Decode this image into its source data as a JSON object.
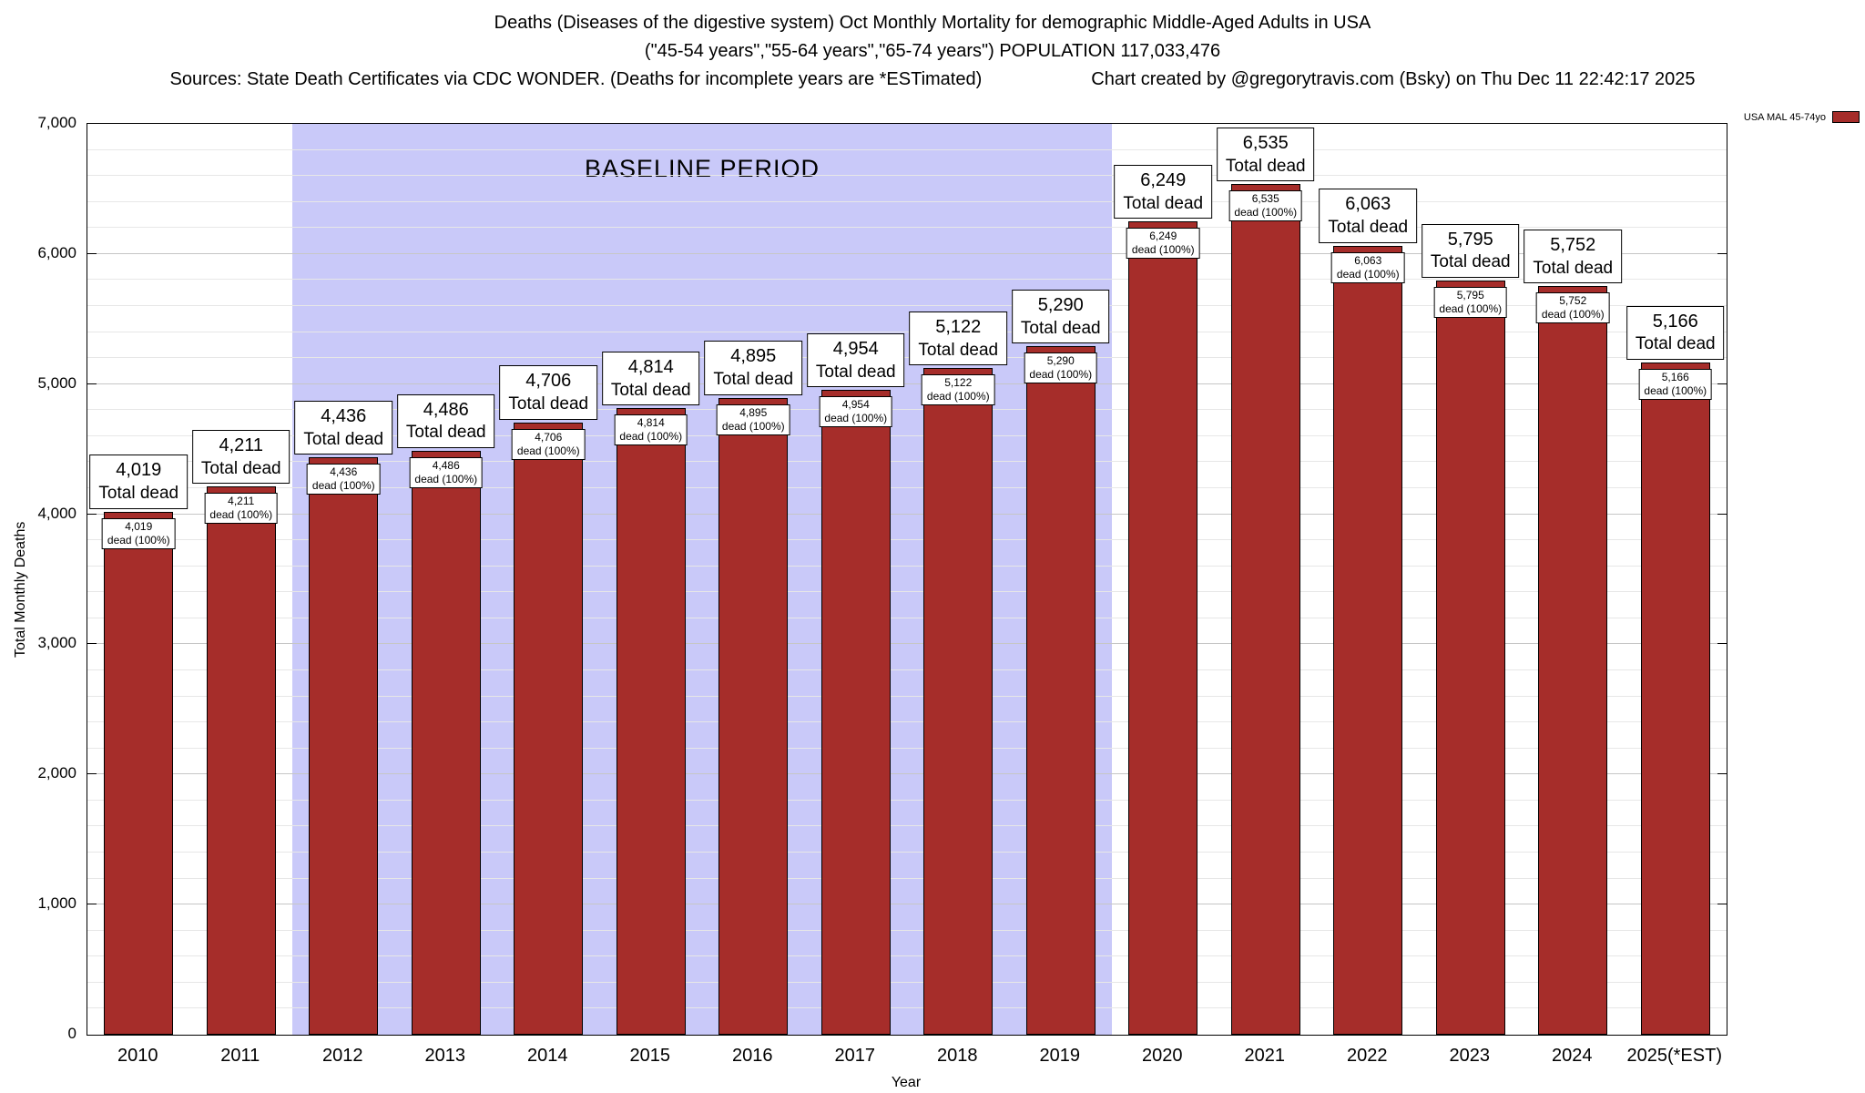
{
  "title": {
    "line1": "Deaths (Diseases of the digestive system) Oct Monthly Mortality for demographic Middle-Aged Adults in USA",
    "line2": "(\"45-54 years\",\"55-64 years\",\"65-74 years\") POPULATION 117,033,476",
    "line3_sources": "Sources: State Death Certificates via CDC WONDER. (Deaths for incomplete years are *ESTimated)",
    "line3_credit": "Chart created by @gregorytravis.com (Bsky) on Thu Dec 11 22:42:17 2025"
  },
  "legend": {
    "label": "USA MAL 45-74yo",
    "swatch_color": "#a62d2a"
  },
  "chart_data": {
    "type": "bar",
    "title": "Deaths (Diseases of the digestive system) Oct Monthly Mortality for demographic Middle-Aged Adults in USA",
    "xlabel": "Year",
    "ylabel": "Total Monthly Deaths",
    "ylim": [
      0,
      7000
    ],
    "ytick_step": 1000,
    "minor_tick_step": 200,
    "grid": true,
    "legend_position": "top-right",
    "categories": [
      "2010",
      "2011",
      "2012",
      "2013",
      "2014",
      "2015",
      "2016",
      "2017",
      "2018",
      "2019",
      "2020",
      "2021",
      "2022",
      "2023",
      "2024",
      "2025(*EST)"
    ],
    "values": [
      4019,
      4211,
      4436,
      4486,
      4706,
      4814,
      4895,
      4954,
      5122,
      5290,
      6249,
      6535,
      6063,
      5795,
      5752,
      5166
    ],
    "bar_color": "#a62d2a",
    "bar_label_line2": "Total dead",
    "inner_label_line2": "dead (100%)",
    "baseline": {
      "label": "BASELINE PERIOD",
      "start_category": "2012",
      "end_category": "2019",
      "color": "#c9c9f9"
    }
  }
}
